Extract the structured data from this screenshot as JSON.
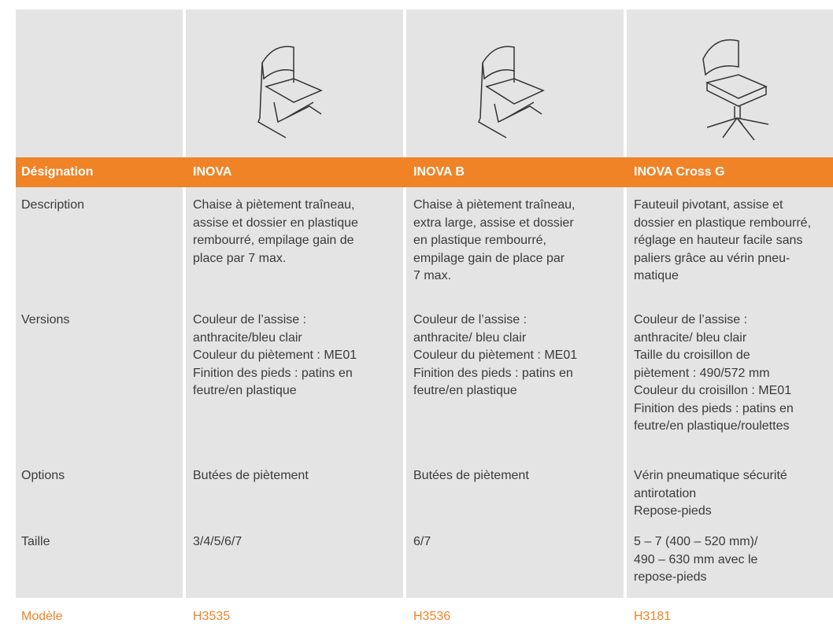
{
  "header": {
    "columns": [
      "Désignation",
      "INOVA",
      "INOVA B",
      "INOVA Cross G"
    ]
  },
  "rows": [
    {
      "label": "Description",
      "cells": [
        [
          "Chaise à piètement traîneau,",
          "assise et dossier en plastique",
          "rembourré, empilage gain de",
          "place par 7 max."
        ],
        [
          "Chaise à piètement traîneau,",
          "extra large, assise et dossier",
          "en plastique rembourré,",
          "empilage gain de place par",
          "7 max."
        ],
        [
          "Fauteuil pivotant, assise et",
          "dossier en plastique rembourré,",
          "réglage en hauteur facile sans",
          "paliers grâce au vérin pneu-",
          "matique"
        ]
      ]
    },
    {
      "label": "Versions",
      "cells": [
        [
          "Couleur de l’assise :",
          "anthracite/bleu clair",
          "Couleur du piètement : ME01",
          "Finition des pieds : patins en",
          "feutre/en plastique"
        ],
        [
          "Couleur de l’assise :",
          "anthracite/ bleu clair",
          "Couleur du piètement : ME01",
          "Finition des pieds : patins en",
          "feutre/en plastique"
        ],
        [
          "Couleur de l’assise :",
          "anthracite/ bleu clair",
          "Taille du croisillon de",
          "piètement : 490/572 mm",
          "Couleur du croisillon : ME01",
          "Finition des pieds : patins en",
          "feutre/en plastique/roulettes"
        ]
      ]
    },
    {
      "label": "Options",
      "cells": [
        [
          "Butées de piètement"
        ],
        [
          "Butées de piètement"
        ],
        [
          "Vérin pneumatique sécurité",
          "antirotation",
          "Repose-pieds"
        ]
      ]
    },
    {
      "label": "Taille",
      "cells": [
        [
          "3/4/5/6/7"
        ],
        [
          "6/7"
        ],
        [
          "5 – 7 (400 – 520 mm)/",
          "490 – 630 mm avec le",
          "repose-pieds"
        ]
      ]
    }
  ],
  "footer": {
    "label": "Modèle",
    "cells": [
      "H3535",
      "H3536",
      "H3181"
    ]
  }
}
